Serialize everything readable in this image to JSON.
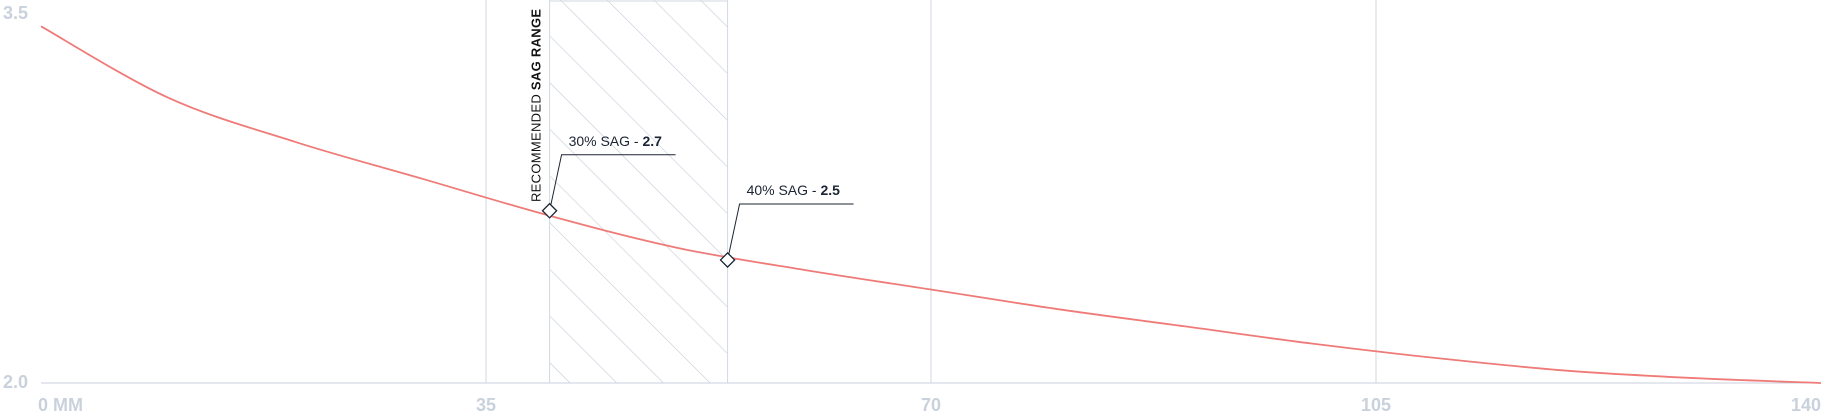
{
  "chart_data": {
    "type": "line",
    "x_ticks": [
      0,
      35,
      70,
      105,
      140
    ],
    "x_tick_labels": [
      "0 MM",
      "35",
      "70",
      "105",
      "140"
    ],
    "y_ticks": [
      2.0,
      3.5
    ],
    "y_tick_labels": [
      "2.0",
      "3.5"
    ],
    "xlim": [
      0,
      140
    ],
    "ylim": [
      2.0,
      3.5
    ],
    "grid": "vertical",
    "series": [
      {
        "color": "#ef7b78",
        "x": [
          0,
          10,
          20,
          30,
          40,
          50,
          60,
          70,
          80,
          90,
          100,
          110,
          120,
          130,
          140
        ],
        "y": [
          3.45,
          3.16,
          2.98,
          2.83,
          2.68,
          2.55,
          2.46,
          2.38,
          2.3,
          2.23,
          2.16,
          2.1,
          2.05,
          2.02,
          2.0
        ]
      }
    ],
    "shaded_range": {
      "x_start": 40,
      "x_end": 54,
      "label_regular": "RECOMMENDED ",
      "label_bold": "SAG RANGE",
      "pattern": "diagonal-hatch"
    },
    "annotations": [
      {
        "x": 40,
        "y": 2.7,
        "label": "30% SAG - ",
        "value": "2.7",
        "direction": "up"
      },
      {
        "x": 54,
        "y": 2.5,
        "label": "40% SAG - ",
        "value": "2.5",
        "direction": "up"
      }
    ],
    "colors": {
      "line": "#ef7b78",
      "grid": "#d2dae2",
      "axis": "#c9d2dc",
      "tick_text": "#c9d2dc",
      "hatch": "#c3ccd6",
      "annotation": "#1b2433"
    }
  }
}
